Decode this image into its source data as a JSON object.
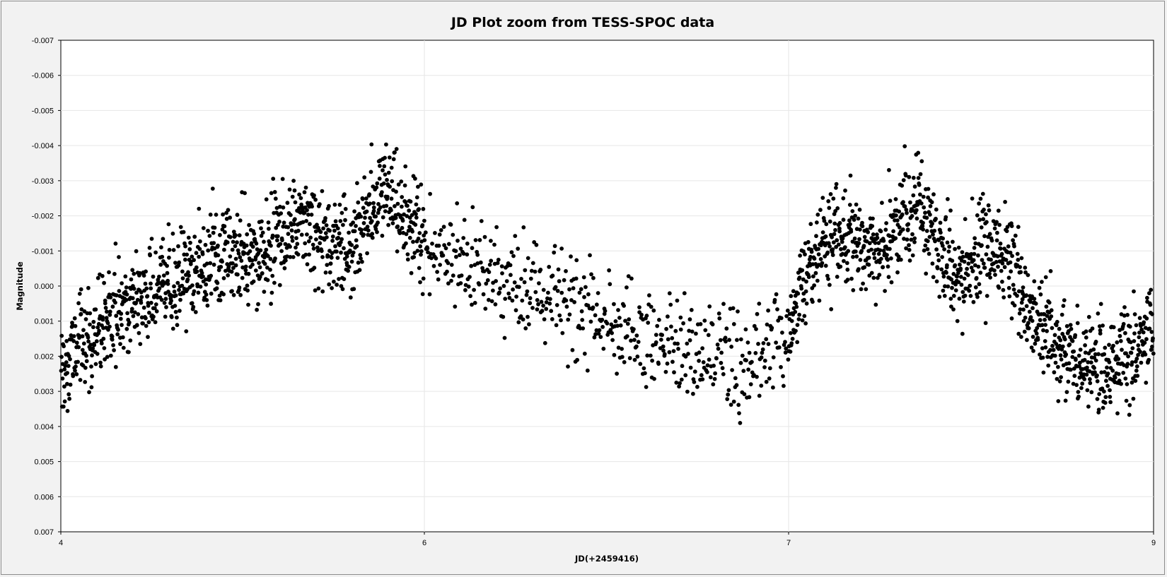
{
  "chart_data": {
    "type": "scatter",
    "title": "JD Plot zoom from TESS-SPOC data",
    "xlabel": "JD(+2459416)",
    "ylabel": "Magnitude",
    "xlim": [
      4,
      9
    ],
    "ylim": [
      -0.007,
      0.007
    ],
    "y_reversed": true,
    "x_axis_note": "tick labels shown at 4, 6, 7, 9 (non-linear spacing as displayed)",
    "x_tick_labels": [
      "4",
      "6",
      "7",
      "9"
    ],
    "x_tick_values": [
      4,
      6,
      7,
      9
    ],
    "y_tick_labels": [
      "-0.007",
      "-0.006",
      "-0.005",
      "-0.004",
      "-0.003",
      "-0.002",
      "-0.001",
      "0.000",
      "0.001",
      "0.002",
      "0.003",
      "0.004",
      "0.005",
      "0.006",
      "0.007"
    ],
    "y_tick_values": [
      -0.007,
      -0.006,
      -0.005,
      -0.004,
      -0.003,
      -0.002,
      -0.001,
      0,
      0.001,
      0.002,
      0.003,
      0.004,
      0.005,
      0.006,
      0.007
    ],
    "grid": true,
    "legend": "none",
    "marker_color": "#000000",
    "trend_x": [
      4.0,
      4.1,
      4.2,
      4.3,
      4.4,
      4.5,
      4.6,
      4.7,
      4.8,
      4.9,
      5.0,
      5.1,
      5.2,
      5.3,
      5.4,
      5.5,
      5.6,
      5.7,
      5.8,
      5.9,
      6.0,
      6.1,
      6.2,
      6.3,
      6.4,
      6.5,
      6.6,
      6.7,
      6.8,
      6.9,
      7.0,
      7.1,
      7.2,
      7.3,
      7.4,
      7.5,
      7.6,
      7.7,
      7.8,
      7.9,
      8.0,
      8.1,
      8.2,
      8.3,
      8.4,
      8.5,
      8.6,
      8.7,
      8.8,
      8.9,
      9.0
    ],
    "trend_y": [
      0.0025,
      0.0018,
      0.0012,
      0.0008,
      0.0005,
      0.0002,
      0.0,
      -0.0003,
      -0.0005,
      -0.0007,
      -0.0008,
      -0.001,
      -0.0014,
      -0.0018,
      -0.0015,
      -0.0012,
      -0.001,
      -0.0022,
      -0.0026,
      -0.002,
      -0.0012,
      -0.0006,
      -0.0002,
      0.0002,
      0.0005,
      0.001,
      0.0014,
      0.0018,
      0.002,
      0.0022,
      0.0015,
      -0.0005,
      -0.0012,
      -0.0015,
      -0.001,
      -0.0008,
      -0.0018,
      -0.0022,
      -0.0012,
      -0.0004,
      -0.0008,
      -0.0012,
      -0.0008,
      0.0005,
      0.0012,
      0.0018,
      0.0022,
      0.0024,
      0.0022,
      0.0018,
      0.0012
    ],
    "scatter_amplitude": 0.0013,
    "n_points": 2600
  }
}
